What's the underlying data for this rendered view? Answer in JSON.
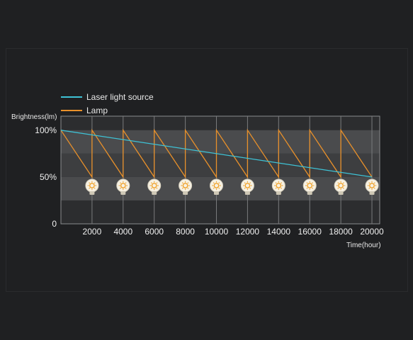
{
  "chart_data": {
    "type": "line",
    "title": "",
    "xlabel": "Time(hour)",
    "ylabel": "Brightness(lm)",
    "x_ticks": [
      "2000",
      "4000",
      "6000",
      "8000",
      "10000",
      "12000",
      "14000",
      "16000",
      "18000",
      "20000"
    ],
    "y_ticks": [
      "0",
      "50%",
      "100%"
    ],
    "xlim": [
      0,
      20500
    ],
    "ylim": [
      0,
      115
    ],
    "grid": true,
    "legend_position": "top-left",
    "series": [
      {
        "name": "Laser light source",
        "color": "#3ec3d6",
        "x": [
          0,
          20000
        ],
        "y": [
          100,
          50
        ]
      },
      {
        "name": "Lamp",
        "color": "#e8902a",
        "x": [
          0,
          2000,
          2000,
          4000,
          4000,
          6000,
          6000,
          8000,
          8000,
          10000,
          10000,
          12000,
          12000,
          14000,
          14000,
          16000,
          16000,
          18000,
          18000,
          20000
        ],
        "y": [
          100,
          50,
          100,
          50,
          100,
          50,
          100,
          50,
          100,
          50,
          100,
          50,
          100,
          50,
          100,
          50,
          100,
          50,
          100,
          50
        ]
      }
    ],
    "lamp_replacement_hours": [
      2000,
      4000,
      6000,
      8000,
      10000,
      12000,
      14000,
      16000,
      18000,
      20000
    ],
    "lamp_replacement_icon": "light-bulb-icon"
  }
}
